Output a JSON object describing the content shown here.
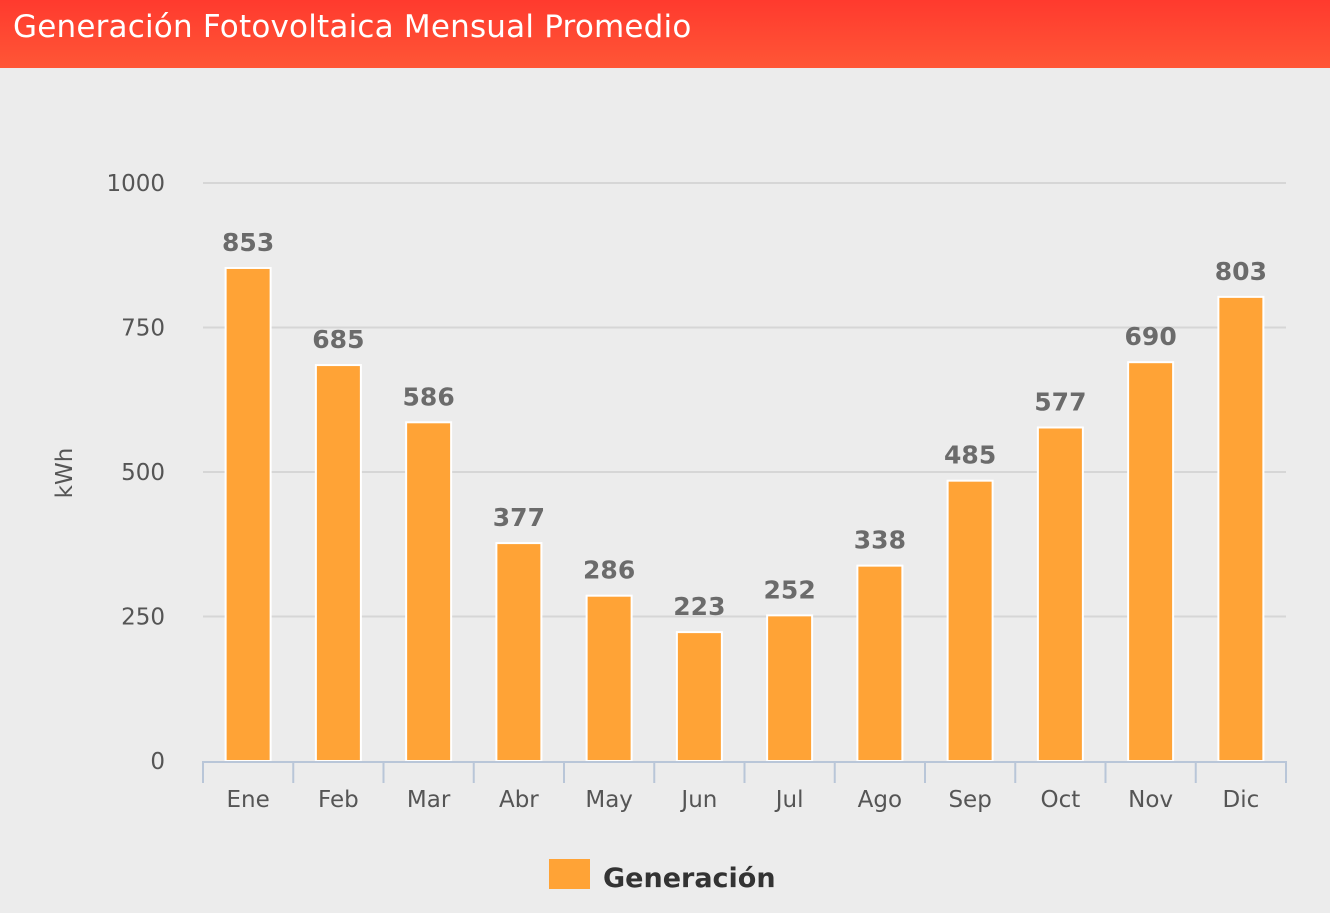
{
  "header": {
    "title": "Generación Fotovoltaica Mensual Promedio"
  },
  "chart_data": {
    "type": "bar",
    "title": "Generación Fotovoltaica Mensual Promedio",
    "xlabel": "",
    "ylabel": "kWh",
    "ylim": [
      0,
      1000
    ],
    "yticks": [
      0,
      250,
      500,
      750,
      1000
    ],
    "grid": true,
    "legend_position": "bottom-center",
    "categories": [
      "Ene",
      "Feb",
      "Mar",
      "Abr",
      "May",
      "Jun",
      "Jul",
      "Ago",
      "Sep",
      "Oct",
      "Nov",
      "Dic"
    ],
    "series": [
      {
        "name": "Generación",
        "color": "#ffa336",
        "values": [
          853,
          685,
          586,
          377,
          286,
          223,
          252,
          338,
          485,
          577,
          690,
          803
        ]
      }
    ]
  }
}
